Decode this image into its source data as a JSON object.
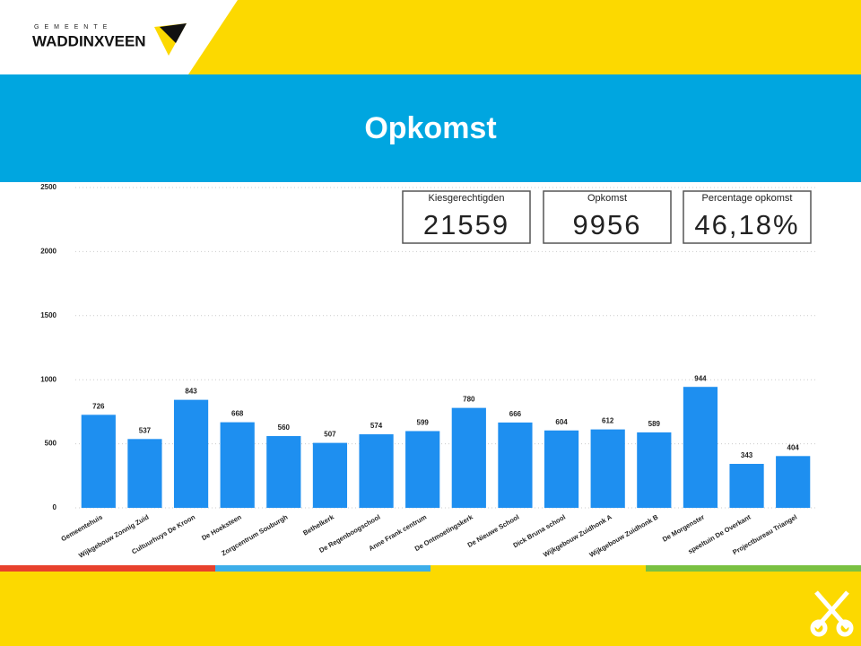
{
  "header": {
    "municipality_prefix": "GEMEENTE",
    "municipality": "WADDINXVEEN",
    "title": "Opkomst"
  },
  "cards": [
    {
      "label": "Kiesgerechtigden",
      "value": "21559"
    },
    {
      "label": "Opkomst",
      "value": "9956"
    },
    {
      "label": "Percentage opkomst",
      "value": "46,18%"
    }
  ],
  "chart_data": {
    "type": "bar",
    "categories": [
      "Gemeentehuis",
      "Wijkgebouw Zonnig Zuid",
      "Cultuurhuys De Kroon",
      "De Hoeksteen",
      "Zorgcentrum Souburgh",
      "Bethelkerk",
      "De Regenboogschool",
      "Anne Frank centrum",
      "De Ontmoetingskerk",
      "De Nieuwe School",
      "Dick Bruna school",
      "Wijkgebouw Zuidhonk A",
      "Wijkgebouw Zuidhonk B",
      "De Morgenster",
      "speeltuin De Overkant",
      "Projectbureau Triangel"
    ],
    "values": [
      726,
      537,
      843,
      668,
      560,
      507,
      574,
      599,
      780,
      666,
      604,
      612,
      589,
      944,
      343,
      404
    ],
    "color": "#1e8ff0",
    "ylim": [
      0,
      2500
    ],
    "yticks": [
      0,
      500,
      1000,
      1500,
      2000,
      2500
    ],
    "grid": true
  }
}
